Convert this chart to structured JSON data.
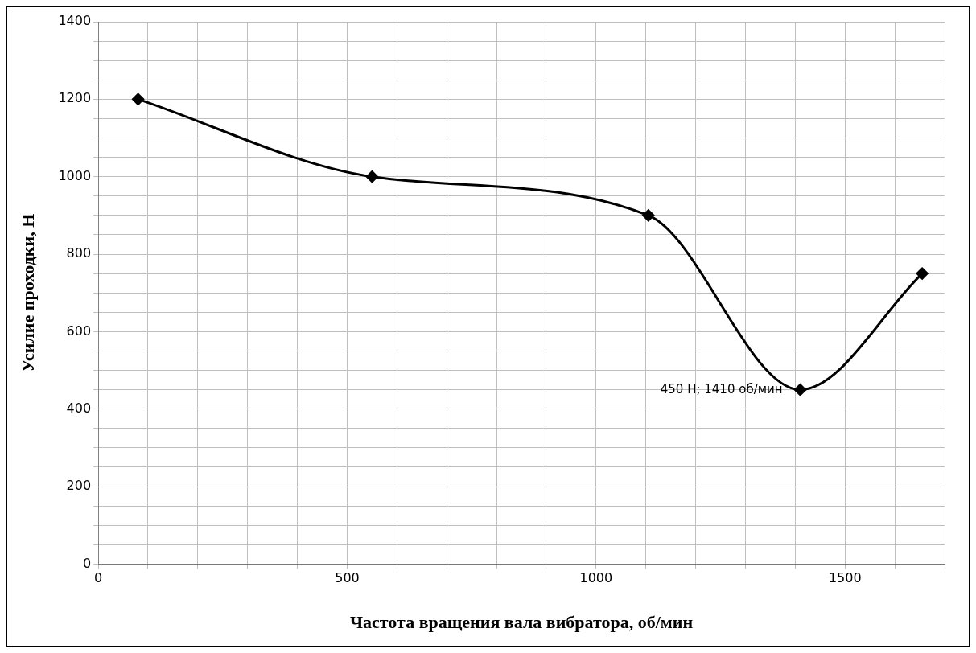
{
  "chart_data": {
    "type": "line",
    "xlabel": "Частота вращения вала вибратора, об/мин",
    "ylabel": "Усилие проходки, Н",
    "x": [
      80,
      550,
      1105,
      1410,
      1655
    ],
    "series": [
      {
        "color": "#000000",
        "values": [
          1200,
          1000,
          900,
          450,
          750
        ]
      }
    ],
    "xlim": [
      0,
      1700
    ],
    "xticks": [
      0,
      {
        "value": 100,
        "label": null
      },
      {
        "value": 200,
        "label": null
      },
      {
        "value": 300,
        "label": null
      },
      {
        "value": 400,
        "label": null
      },
      500,
      {
        "value": 600,
        "label": null
      },
      {
        "value": 700,
        "label": null
      },
      {
        "value": 800,
        "label": null
      },
      {
        "value": 900,
        "label": null
      },
      1000,
      {
        "value": 1100,
        "label": null
      },
      {
        "value": 1200,
        "label": null
      },
      {
        "value": 1300,
        "label": null
      },
      {
        "value": 1400,
        "label": null
      },
      1500,
      {
        "value": 1600,
        "label": null
      },
      {
        "value": 1700,
        "label": null
      }
    ],
    "ylim": [
      0,
      1400
    ],
    "yticks": [
      0,
      {
        "value": 50,
        "label": null
      },
      {
        "value": 100,
        "label": null
      },
      {
        "value": 150,
        "label": null
      },
      200,
      {
        "value": 250,
        "label": null
      },
      {
        "value": 300,
        "label": null
      },
      {
        "value": 350,
        "label": null
      },
      400,
      {
        "value": 450,
        "label": null
      },
      {
        "value": 500,
        "label": null
      },
      {
        "value": 550,
        "label": null
      },
      600,
      {
        "value": 650,
        "label": null
      },
      {
        "value": 700,
        "label": null
      },
      {
        "value": 750,
        "label": null
      },
      800,
      {
        "value": 850,
        "label": null
      },
      {
        "value": 900,
        "label": null
      },
      {
        "value": 950,
        "label": null
      },
      1000,
      {
        "value": 1050,
        "label": null
      },
      {
        "value": 1100,
        "label": null
      },
      {
        "value": 1150,
        "label": null
      },
      1200,
      {
        "value": 1250,
        "label": null
      },
      {
        "value": 1300,
        "label": null
      },
      {
        "value": 1350,
        "label": null
      },
      1400
    ],
    "annotations": [
      {
        "text": "450 Н; 1410 об/мин",
        "x": 1410,
        "y": 450
      }
    ],
    "grid": true,
    "legend": false,
    "marker": "diamond",
    "line_style": "solid"
  }
}
